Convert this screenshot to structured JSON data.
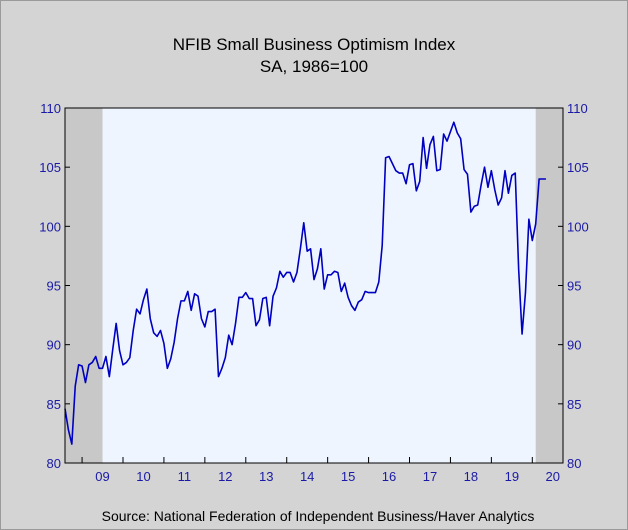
{
  "chart_data": {
    "type": "line",
    "title": "NFIB Small Business Optimism Index",
    "subtitle": "SA, 1986=100",
    "source": "Source:  National Federation of Independent Business/Haver Analytics",
    "ylim": [
      80,
      110
    ],
    "yticks": [
      "80",
      "85",
      "90",
      "95",
      "100",
      "105",
      "110"
    ],
    "xlim": [
      2008.583,
      2020.75
    ],
    "xticks": [
      "09",
      "10",
      "11",
      "12",
      "13",
      "14",
      "15",
      "16",
      "17",
      "18",
      "19",
      "20"
    ],
    "recessions": [
      [
        2008.583,
        2009.5
      ],
      [
        2020.083,
        2020.75
      ]
    ],
    "grid": false,
    "colors": {
      "line": "#0000c0",
      "plot_bg": "#eef5ff",
      "recession": "#c8c8c8",
      "axis_text": "#1a1aa6"
    },
    "series": [
      {
        "start": 2008.583,
        "step": 0.0833333,
        "values": [
          84.6,
          82.8,
          81.6,
          86.5,
          88.3,
          88.2,
          86.8,
          88.3,
          88.5,
          89.0,
          88.0,
          88.0,
          89.0,
          87.3,
          89.6,
          91.8,
          89.5,
          88.3,
          88.5,
          88.9,
          91.2,
          93.0,
          92.6,
          93.8,
          94.7,
          92.2,
          91.0,
          90.7,
          91.2,
          90.1,
          88.0,
          88.8,
          90.2,
          92.2,
          93.7,
          93.7,
          94.5,
          92.9,
          94.3,
          94.1,
          92.2,
          91.5,
          92.8,
          92.8,
          93.0,
          87.3,
          88.0,
          88.9,
          90.8,
          90.0,
          91.8,
          94.0,
          94.0,
          94.4,
          93.9,
          93.9,
          91.6,
          92.1,
          93.9,
          94.0,
          91.6,
          94.1,
          94.8,
          96.2,
          95.7,
          96.1,
          96.1,
          95.3,
          96.1,
          98.1,
          100.3,
          97.9,
          98.1,
          95.5,
          96.4,
          98.1,
          94.7,
          95.9,
          95.9,
          96.2,
          96.1,
          94.5,
          95.2,
          94.0,
          93.3,
          92.9,
          93.6,
          93.8,
          94.5,
          94.4,
          94.4,
          94.4,
          95.3,
          98.4,
          105.8,
          105.9,
          105.3,
          104.7,
          104.5,
          104.5,
          103.6,
          105.2,
          105.3,
          103.0,
          103.8,
          107.5,
          104.9,
          106.9,
          107.6,
          104.7,
          104.8,
          107.8,
          107.2,
          108.0,
          108.8,
          107.9,
          107.4,
          104.8,
          104.4,
          101.2,
          101.7,
          101.8,
          103.5,
          105.0,
          103.3,
          104.7,
          103.1,
          101.8,
          102.4,
          104.7,
          102.8,
          104.3,
          104.5,
          96.4,
          90.9,
          94.4,
          100.6,
          98.8,
          100.2,
          104.0,
          104.0,
          104.0
        ]
      }
    ]
  }
}
